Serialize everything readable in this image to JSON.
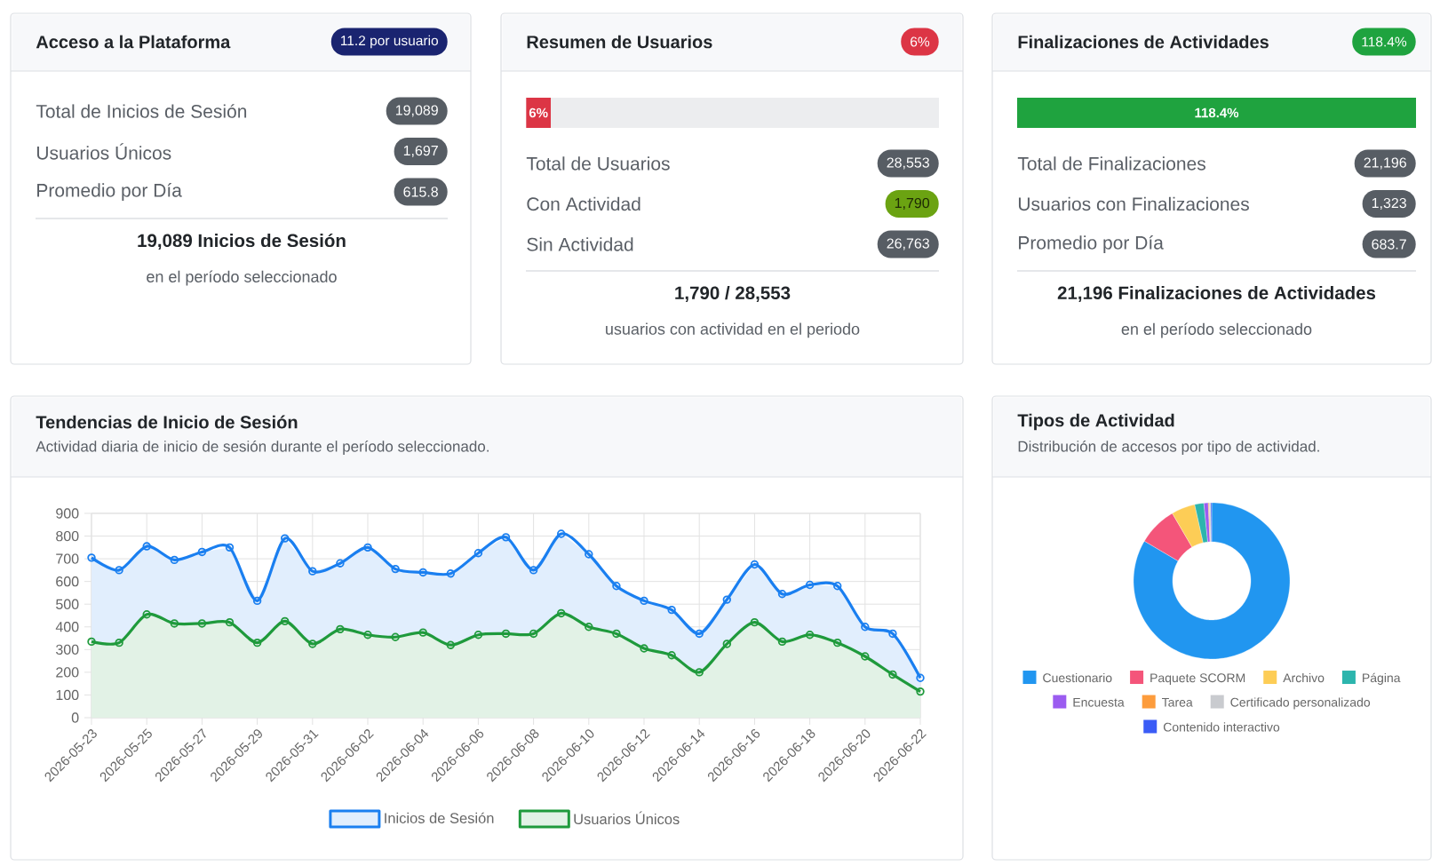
{
  "chart_data": [
    {
      "type": "other",
      "title": "Acceso a la Plataforma",
      "subtitle": "11.2 por usuario",
      "annotations": [
        "Total de Inicios de Sesión",
        "19,089",
        "Usuarios Únicos",
        "1,697",
        "Promedio por Día",
        "615.8",
        "19,089 Inicios de Sesión",
        "en el período seleccionado"
      ]
    },
    {
      "type": "other",
      "title": "Resumen de Usuarios",
      "subtitle": "6%",
      "annotations": [
        "6%",
        "Total de Usuarios",
        "28,553",
        "Con Actividad",
        "1,790",
        "Sin Actividad",
        "26,763",
        "1,790 / 28,553",
        "usuarios con actividad en el periodo"
      ]
    },
    {
      "type": "other",
      "title": "Finalizaciones de Actividades",
      "subtitle": "118.4%",
      "annotations": [
        "118.4%",
        "Total de Finalizaciones",
        "21,196",
        "Usuarios con Finalizaciones",
        "1,323",
        "Promedio por Día",
        "683.7",
        "21,196 Finalizaciones de Actividades",
        "en el período seleccionado"
      ]
    },
    {
      "type": "area",
      "title": "Tendencias de Inicio de Sesión",
      "subtitle": "Actividad diaria de inicio de sesión durante el período seleccionado.",
      "categories": [
        "2026-05-23",
        null,
        "2026-05-25",
        null,
        "2026-05-27",
        null,
        "2026-05-29",
        null,
        "2026-05-31",
        null,
        "2026-06-02",
        null,
        "2026-06-04",
        null,
        "2026-06-06",
        null,
        "2026-06-08",
        null,
        "2026-06-10",
        null,
        "2026-06-12",
        null,
        "2026-06-14",
        null,
        "2026-06-16",
        null,
        "2026-06-18",
        null,
        "2026-06-20",
        null,
        "2026-06-22"
      ],
      "series": [
        {
          "name": "Inicios de Sesión",
          "color": "#1a7ff0",
          "values": [
            705,
            650,
            755,
            695,
            730,
            750,
            515,
            790,
            645,
            680,
            750,
            655,
            640,
            635,
            725,
            795,
            650,
            810,
            720,
            580,
            515,
            475,
            370,
            520,
            675,
            545,
            585,
            580,
            400,
            370,
            175
          ]
        },
        {
          "name": "Usuarios Únicos",
          "color": "#1f9a3c",
          "values": [
            335,
            330,
            455,
            415,
            415,
            420,
            330,
            425,
            325,
            390,
            365,
            355,
            375,
            320,
            365,
            370,
            370,
            460,
            400,
            370,
            305,
            275,
            200,
            325,
            420,
            335,
            365,
            330,
            270,
            190,
            115
          ]
        }
      ],
      "ylim": [
        0,
        900
      ],
      "yticks": [
        0,
        100,
        200,
        300,
        400,
        500,
        600,
        700,
        800,
        900
      ],
      "grid": true,
      "legend": "bottom",
      "marker": "circle"
    },
    {
      "type": "donut",
      "title": "Tipos de Actividad",
      "subtitle": "Distribución de accesos por tipo de actividad.",
      "categories": [
        "Cuestionario",
        "Paquete SCORM",
        "Archivo",
        "Página",
        "Encuesta",
        "Tarea",
        "Certificado personalizado",
        "Contenido interactivo"
      ],
      "values": [
        83.5,
        8.1,
        4.9,
        1.9,
        0.9,
        0.2,
        0.3,
        0.2
      ],
      "colors": [
        "#2196f0",
        "#f4557a",
        "#fdcd56",
        "#2cb5ad",
        "#9b5cf0",
        "#fd9c3c",
        "#c9cbcf",
        "#3b5cf6"
      ],
      "legend": "bottom"
    }
  ]
}
